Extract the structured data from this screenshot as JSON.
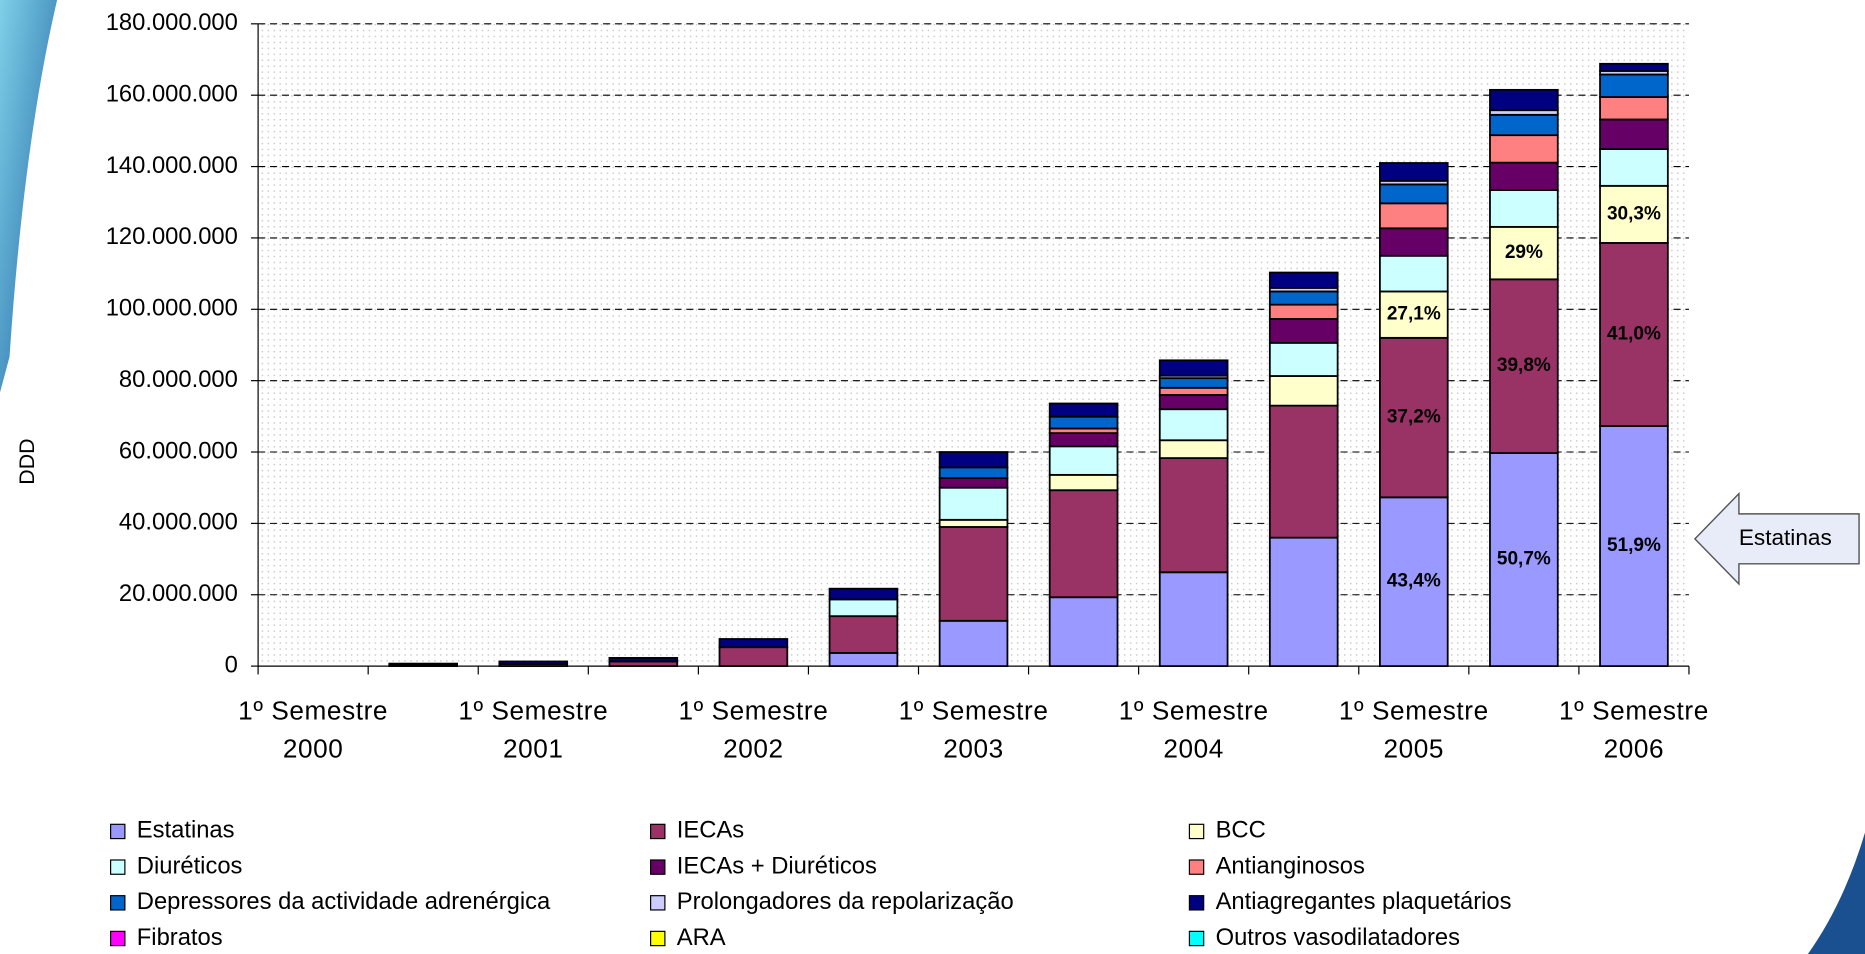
{
  "chart_data": {
    "type": "stacked_bar",
    "y_label": "DDD",
    "annotation": "Estatinas",
    "categories": [
      "1º Semestre\n2000",
      null,
      "1º Semestre\n2001",
      null,
      "1º Semestre\n2002",
      null,
      "1º Semestre\n2003",
      null,
      "1º Semestre\n2004",
      null,
      "1º Semestre\n2005",
      null,
      "1º Semestre\n2006"
    ],
    "ylim": [
      0,
      180000000
    ],
    "yticks": [
      0,
      {
        "value": 20000000,
        "label": "20.000.000"
      },
      {
        "value": 40000000,
        "label": "40.000.000"
      },
      {
        "value": 60000000,
        "label": "60.000.000"
      },
      {
        "value": 80000000,
        "label": "80.000.000"
      },
      {
        "value": 100000000,
        "label": "100.000.000"
      },
      {
        "value": 120000000,
        "label": "120.000.000"
      },
      {
        "value": 140000000,
        "label": "140.000.000"
      },
      {
        "value": 160000000,
        "label": "160.000.000"
      },
      {
        "value": 180000000,
        "label": "180.000.000"
      }
    ],
    "grid": true,
    "series": [
      {
        "name": "Estatinas",
        "color": "#9999ff",
        "values": [
          0,
          0,
          0,
          0,
          0,
          3700000,
          12700000,
          19300000,
          26300000,
          36000000,
          47300000,
          59700000,
          67300000
        ],
        "percent_labels": [
          null,
          null,
          null,
          null,
          null,
          null,
          null,
          null,
          null,
          null,
          "43,4%",
          "50,7%",
          "51,9%"
        ]
      },
      {
        "name": "IECAs",
        "color": "#993366",
        "values": [
          0,
          300000,
          600000,
          1300000,
          5300000,
          10300000,
          26300000,
          30000000,
          32000000,
          37000000,
          44700000,
          48700000,
          51300000
        ],
        "percent_labels": [
          null,
          null,
          null,
          null,
          null,
          null,
          null,
          null,
          null,
          null,
          "37,2%",
          "39,8%",
          "41,0%"
        ]
      },
      {
        "name": "BCC",
        "color": "#ffffcc",
        "values": [
          0,
          0,
          0,
          0,
          0,
          0,
          2000000,
          4300000,
          5000000,
          8300000,
          13000000,
          14700000,
          16000000
        ],
        "percent_labels": [
          null,
          null,
          null,
          null,
          null,
          null,
          null,
          null,
          null,
          null,
          "27,1%",
          "29%",
          "30,3%"
        ]
      },
      {
        "name": "Diuréticos",
        "color": "#ccffff",
        "values": [
          0,
          0,
          0,
          0,
          0,
          4700000,
          9000000,
          8000000,
          8700000,
          9300000,
          10000000,
          10300000,
          10300000
        ]
      },
      {
        "name": "IECAs + Diuréticos",
        "color": "#660066",
        "values": [
          0,
          0,
          0,
          0,
          0,
          0,
          2700000,
          3700000,
          4000000,
          6700000,
          7700000,
          7700000,
          8300000
        ]
      },
      {
        "name": "Antianginosos",
        "color": "#ff8080",
        "values": [
          0,
          0,
          0,
          0,
          0,
          0,
          0,
          1300000,
          2000000,
          4000000,
          7000000,
          7700000,
          6300000
        ]
      },
      {
        "name": "Depressores da actividade adrenérgica",
        "color": "#0066cc",
        "values": [
          0,
          0,
          0,
          0,
          0,
          0,
          3000000,
          3300000,
          2700000,
          3700000,
          5300000,
          5700000,
          6300000
        ]
      },
      {
        "name": "Prolongadores da repolarização",
        "color": "#ccccff",
        "values": [
          0,
          0,
          0,
          0,
          0,
          0,
          0,
          0,
          700000,
          1000000,
          1000000,
          1300000,
          1000000
        ]
      },
      {
        "name": "Antiagregantes plaquetários",
        "color": "#000080",
        "values": [
          0,
          400000,
          700000,
          1000000,
          2300000,
          3000000,
          4300000,
          3700000,
          4300000,
          4300000,
          5000000,
          5700000,
          2000000
        ]
      },
      {
        "name": "Fibratos",
        "color": "#ff00ff",
        "values": [
          0,
          0,
          0,
          0,
          0,
          0,
          0,
          0,
          0,
          0,
          0,
          0,
          0
        ]
      },
      {
        "name": "ARA",
        "color": "#ffff00",
        "values": [
          0,
          0,
          0,
          0,
          0,
          0,
          0,
          0,
          0,
          0,
          0,
          0,
          0
        ]
      },
      {
        "name": "Outros vasodilatadores",
        "color": "#00ffff",
        "values": [
          0,
          0,
          0,
          0,
          0,
          0,
          0,
          0,
          0,
          0,
          0,
          0,
          0
        ]
      }
    ]
  }
}
